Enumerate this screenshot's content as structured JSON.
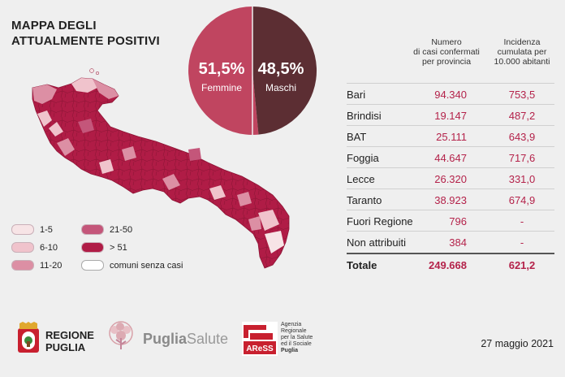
{
  "title_line1": "MAPPA DEGLI",
  "title_line2": "ATTUALMENTE POSITIVI",
  "gender": {
    "female_pct": "51,5%",
    "female_label": "Femmine",
    "male_pct": "48,5%",
    "male_label": "Maschi",
    "female_color": "#c04560",
    "male_color": "#5c2e33"
  },
  "table": {
    "col1_header": [
      "Numero",
      "di casi confermati",
      "per provincia"
    ],
    "col2_header": [
      "Incidenza",
      "cumulata per",
      "10.000 abitanti"
    ],
    "rows": [
      {
        "name": "Bari",
        "cases": "94.340",
        "incidence": "753,5"
      },
      {
        "name": "Brindisi",
        "cases": "19.147",
        "incidence": "487,2"
      },
      {
        "name": "BAT",
        "cases": "25.111",
        "incidence": "643,9"
      },
      {
        "name": "Foggia",
        "cases": "44.647",
        "incidence": "717,6"
      },
      {
        "name": "Lecce",
        "cases": "26.320",
        "incidence": "331,0"
      },
      {
        "name": "Taranto",
        "cases": "38.923",
        "incidence": "674,9"
      },
      {
        "name": "Fuori Regione",
        "cases": "796",
        "incidence": "-"
      },
      {
        "name": "Non attribuiti",
        "cases": "384",
        "incidence": "-"
      }
    ],
    "total": {
      "name": "Totale",
      "cases": "249.668",
      "incidence": "621,2"
    }
  },
  "legend": [
    {
      "label": "1-5",
      "color": "#f7e4e6"
    },
    {
      "label": "6-10",
      "color": "#f0c3cc"
    },
    {
      "label": "11-20",
      "color": "#dc8fa4"
    },
    {
      "label": "21-50",
      "color": "#c4567a"
    },
    {
      "label": "> 51",
      "color": "#b01c46"
    },
    {
      "label": "comuni senza casi",
      "color": "#ffffff"
    }
  ],
  "logos": {
    "regione_line1": "REGIONE",
    "regione_line2": "PUGLIA",
    "puglia": "Puglia",
    "salute": "Salute",
    "aress_lines": [
      "Agenzia",
      "Regionale",
      "per la Salute",
      "ed il Sociale",
      "Puglia"
    ],
    "aress_mark": "AReSS"
  },
  "date": "27 maggio 2021"
}
